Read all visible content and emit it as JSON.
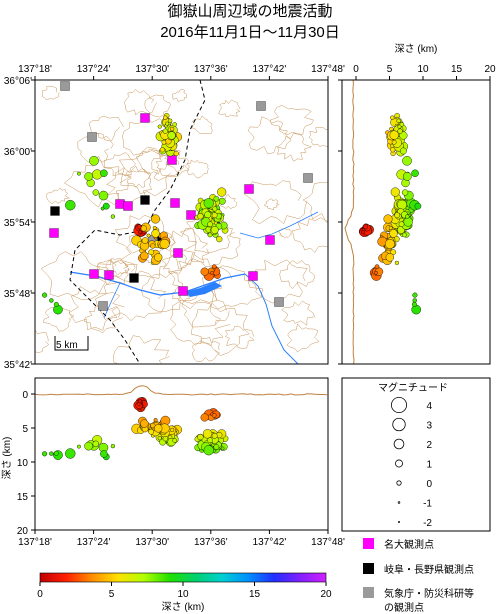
{
  "title": {
    "line1": "御嶽山周辺域の地震活動",
    "line2": "2016年11月1日～11月30日"
  },
  "map": {
    "lon_ticks": [
      "137°18'",
      "137°24'",
      "137°30'",
      "137°36'",
      "137°42'",
      "137°48'"
    ],
    "lat_ticks": [
      "36°06'",
      "36°00'",
      "35°54'",
      "35°48'",
      "35°42'"
    ],
    "scale_label": "5 km"
  },
  "depth_axis": {
    "label": "深さ (km)",
    "ticks": [
      "0",
      "5",
      "10",
      "15",
      "20"
    ]
  },
  "cross_section": {
    "ylabel": "深さ (km)",
    "yticks": [
      "0",
      "5",
      "10",
      "15",
      "20"
    ],
    "xticks": [
      "137°18'",
      "137°24'",
      "137°30'",
      "137°36'",
      "137°42'",
      "137°48'"
    ]
  },
  "magnitude_legend": {
    "title": "マグニチュード",
    "items": [
      "4",
      "3",
      "2",
      "1",
      "0",
      "-1",
      "-2"
    ]
  },
  "stations_legend": {
    "items": [
      "名大観測点",
      "岐阜・長野県観測点",
      "気象庁・防災科研等"
    ],
    "items_line2": "の観測点",
    "colors": [
      "#ff00ff",
      "#000000",
      "#9a9a9a"
    ]
  },
  "colorbar": {
    "label": "深さ (km)",
    "ticks": [
      "0",
      "5",
      "10",
      "15",
      "20"
    ],
    "colors": [
      "#c00000",
      "#ff2000",
      "#ff8c00",
      "#ffe000",
      "#b0ff00",
      "#20e000",
      "#00d070",
      "#00d0d0",
      "#0090ff",
      "#2030ff",
      "#8020ff",
      "#d020ff"
    ]
  },
  "chart_data": {
    "type": "scatter",
    "title": "御嶽山周辺域の地震活動",
    "xlabel": "",
    "ylabel": "深さ (km)",
    "xlim": [
      137.3,
      137.8
    ],
    "ylim_lat": [
      35.7,
      36.1
    ],
    "depth_range": [
      0,
      20
    ],
    "grid": false,
    "clusters": [
      {
        "lon": 137.528,
        "lat": 36.02,
        "lon_spread": 0.022,
        "lat_spread": 0.035,
        "depth": 6,
        "depth_spread": 1.8,
        "count": 45
      },
      {
        "lon": 137.6,
        "lat": 35.91,
        "lon_spread": 0.035,
        "lat_spread": 0.04,
        "depth": 7,
        "depth_spread": 1.8,
        "count": 80
      },
      {
        "lon": 137.48,
        "lat": 35.89,
        "lon_spread": 0.012,
        "lat_spread": 0.008,
        "depth": 1.5,
        "depth_spread": 0.7,
        "count": 14
      },
      {
        "lon": 137.5,
        "lat": 35.87,
        "lon_spread": 0.04,
        "lat_spread": 0.04,
        "depth": 5,
        "depth_spread": 1.5,
        "count": 30
      },
      {
        "lon": 137.6,
        "lat": 35.83,
        "lon_spread": 0.02,
        "lat_spread": 0.008,
        "depth": 3,
        "depth_spread": 0.8,
        "count": 10
      },
      {
        "lon": 137.4,
        "lat": 35.95,
        "lon_spread": 0.06,
        "lat_spread": 0.08,
        "depth": 8,
        "depth_spread": 2,
        "count": 12
      },
      {
        "lon": 137.33,
        "lat": 35.79,
        "lon_spread": 0.02,
        "lat_spread": 0.03,
        "depth": 9,
        "depth_spread": 1,
        "count": 4
      }
    ]
  }
}
